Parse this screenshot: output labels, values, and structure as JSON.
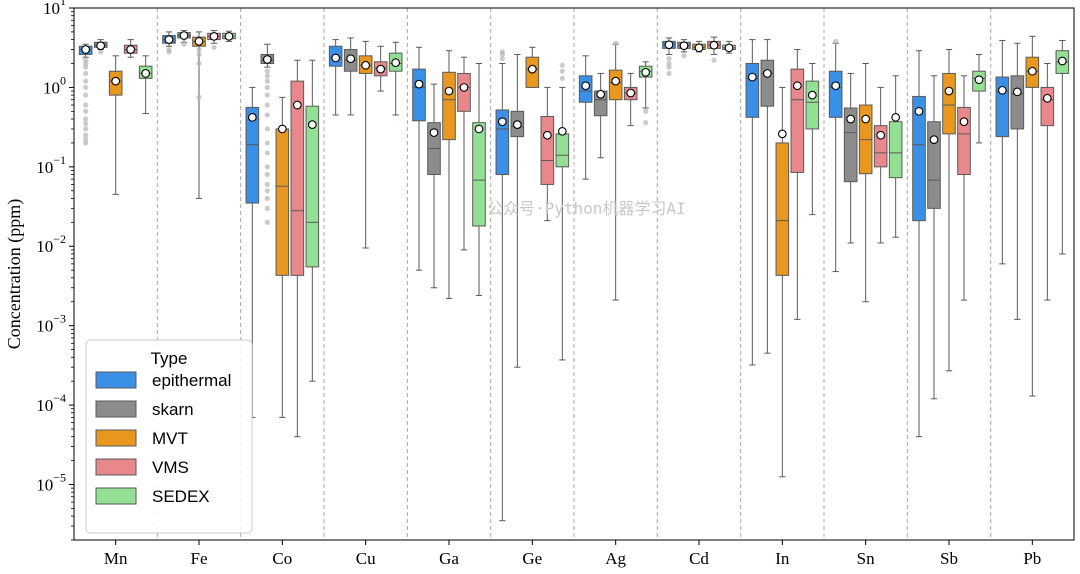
{
  "chart_data": {
    "type": "box",
    "ylabel": "Concentration (ppm)",
    "xlabel": "",
    "yscale": "log",
    "ylim": [
      2e-06,
      10
    ],
    "y_ticks": [
      {
        "value": 1e-05,
        "base": "10",
        "exp": "−5"
      },
      {
        "value": 0.0001,
        "base": "10",
        "exp": "−4"
      },
      {
        "value": 0.001,
        "base": "10",
        "exp": "−3"
      },
      {
        "value": 0.01,
        "base": "10",
        "exp": "−2"
      },
      {
        "value": 0.1,
        "base": "10",
        "exp": "−1"
      },
      {
        "value": 1,
        "base": "10",
        "exp": "0"
      },
      {
        "value": 10,
        "base": "10",
        "exp": "1"
      }
    ],
    "categories": [
      "Mn",
      "Fe",
      "Co",
      "Cu",
      "Ga",
      "Ge",
      "Ag",
      "Cd",
      "In",
      "Sn",
      "Sb",
      "Pb"
    ],
    "legend": {
      "title": "Type",
      "position": "lower-left"
    },
    "grid": false,
    "category_separators": "dashed-vertical",
    "series": [
      {
        "name": "epithermal",
        "color": "#3a8fe6",
        "boxes": [
          {
            "whislo": 2.4,
            "q1": 2.6,
            "med": 3.0,
            "q3": 3.3,
            "whishi": 3.5,
            "mean": 3.0,
            "fliers": [
              2.2,
              2.0,
              1.8,
              1.5,
              1.2,
              1.0,
              0.8,
              0.6,
              0.5,
              0.4,
              0.35,
              0.3,
              0.25,
              0.22,
              0.2
            ]
          },
          {
            "whislo": 3.3,
            "q1": 3.6,
            "med": 4.0,
            "q3": 4.5,
            "whishi": 5.0,
            "mean": 4.0,
            "fliers": [
              3.0,
              2.8
            ]
          },
          {
            "whislo": 7e-05,
            "q1": 0.035,
            "med": 0.19,
            "q3": 0.56,
            "whishi": 1.0,
            "mean": 0.42,
            "fliers": []
          },
          {
            "whislo": 0.45,
            "q1": 1.85,
            "med": 2.4,
            "q3": 3.3,
            "whishi": 4.0,
            "mean": 2.35,
            "fliers": []
          },
          {
            "whislo": 0.005,
            "q1": 0.38,
            "med": 1.0,
            "q3": 1.7,
            "whishi": 3.2,
            "mean": 1.1,
            "fliers": []
          },
          {
            "whislo": 3.5e-06,
            "q1": 0.08,
            "med": 0.3,
            "q3": 0.52,
            "whishi": 2.0,
            "mean": 0.37,
            "fliers": [
              2.3,
              2.6,
              2.8
            ]
          },
          {
            "whislo": 0.07,
            "q1": 0.65,
            "med": 0.9,
            "q3": 1.4,
            "whishi": 2.5,
            "mean": 1.05,
            "fliers": []
          },
          {
            "whislo": 2.6,
            "q1": 3.1,
            "med": 3.5,
            "q3": 3.8,
            "whishi": 4.2,
            "mean": 3.45,
            "fliers": [
              2.3,
              2.0,
              1.8,
              1.5
            ]
          },
          {
            "whislo": 0.00032,
            "q1": 0.42,
            "med": 1.3,
            "q3": 2.0,
            "whishi": 4.0,
            "mean": 1.35,
            "fliers": []
          },
          {
            "whislo": 0.0048,
            "q1": 0.42,
            "med": 1.0,
            "q3": 1.6,
            "whishi": 3.6,
            "mean": 1.05,
            "fliers": [
              3.8
            ]
          },
          {
            "whislo": 4e-05,
            "q1": 0.021,
            "med": 0.19,
            "q3": 0.77,
            "whishi": 2.9,
            "mean": 0.5,
            "fliers": []
          },
          {
            "whislo": 0.006,
            "q1": 0.24,
            "med": 0.9,
            "q3": 1.35,
            "whishi": 3.9,
            "mean": 0.92,
            "fliers": []
          }
        ]
      },
      {
        "name": "skarn",
        "color": "#8c8c8c",
        "boxes": [
          {
            "whislo": 3.0,
            "q1": 3.2,
            "med": 3.4,
            "q3": 3.7,
            "whishi": 4.0,
            "mean": 3.35,
            "fliers": [
              2.8
            ]
          },
          {
            "whislo": 3.7,
            "q1": 4.2,
            "med": 4.5,
            "q3": 4.9,
            "whishi": 5.2,
            "mean": 4.5,
            "fliers": [
              3.5
            ]
          },
          {
            "whislo": 1.8,
            "q1": 2.0,
            "med": 2.2,
            "q3": 2.6,
            "whishi": 3.5,
            "mean": 2.25,
            "fliers": [
              1.6,
              1.4,
              1.2,
              1.0,
              0.8,
              0.6,
              0.45,
              0.3,
              0.2,
              0.15,
              0.1,
              0.08,
              0.06,
              0.05,
              0.04,
              0.03,
              0.02
            ]
          },
          {
            "whislo": 0.45,
            "q1": 1.6,
            "med": 2.2,
            "q3": 3.0,
            "whishi": 4.2,
            "mean": 2.3,
            "fliers": []
          },
          {
            "whislo": 0.003,
            "q1": 0.08,
            "med": 0.17,
            "q3": 0.36,
            "whishi": 1.1,
            "mean": 0.27,
            "fliers": []
          },
          {
            "whislo": 0.0003,
            "q1": 0.24,
            "med": 0.32,
            "q3": 0.5,
            "whishi": 2.6,
            "mean": 0.34,
            "fliers": []
          },
          {
            "whislo": 0.13,
            "q1": 0.44,
            "med": 0.7,
            "q3": 0.9,
            "whishi": 1.5,
            "mean": 0.82,
            "fliers": []
          },
          {
            "whislo": 2.8,
            "q1": 3.1,
            "med": 3.4,
            "q3": 3.7,
            "whishi": 4.0,
            "mean": 3.35,
            "fliers": [
              2.5
            ]
          },
          {
            "whislo": 0.00045,
            "q1": 0.58,
            "med": 1.5,
            "q3": 2.2,
            "whishi": 4.0,
            "mean": 1.5,
            "fliers": []
          },
          {
            "whislo": 0.011,
            "q1": 0.065,
            "med": 0.27,
            "q3": 0.55,
            "whishi": 1.5,
            "mean": 0.4,
            "fliers": []
          },
          {
            "whislo": 0.00012,
            "q1": 0.03,
            "med": 0.068,
            "q3": 0.37,
            "whishi": 1.4,
            "mean": 0.22,
            "fliers": []
          },
          {
            "whislo": 0.0012,
            "q1": 0.3,
            "med": 0.83,
            "q3": 1.4,
            "whishi": 3.6,
            "mean": 0.88,
            "fliers": []
          }
        ]
      },
      {
        "name": "MVT",
        "color": "#e8981e",
        "boxes": [
          {
            "whislo": 0.045,
            "q1": 0.8,
            "med": 1.2,
            "q3": 1.6,
            "whishi": 2.5,
            "mean": 1.2,
            "fliers": []
          },
          {
            "whislo": 0.04,
            "q1": 3.3,
            "med": 3.8,
            "q3": 4.3,
            "whishi": 5.0,
            "mean": 3.8,
            "fliers": [
              3.0,
              2.6,
              2.0,
              0.75
            ]
          },
          {
            "whislo": 7e-05,
            "q1": 0.0043,
            "med": 0.057,
            "q3": 0.3,
            "whishi": 0.75,
            "mean": 0.3,
            "fliers": []
          },
          {
            "whislo": 0.0095,
            "q1": 1.5,
            "med": 1.9,
            "q3": 2.5,
            "whishi": 3.8,
            "mean": 1.9,
            "fliers": []
          },
          {
            "whislo": 0.0022,
            "q1": 0.22,
            "med": 0.7,
            "q3": 1.55,
            "whishi": 2.9,
            "mean": 0.9,
            "fliers": []
          },
          {
            "whislo": 1.0,
            "q1": 1.0,
            "med": 1.7,
            "q3": 2.4,
            "whishi": 3.2,
            "mean": 1.7,
            "fliers": []
          },
          {
            "whislo": 0.0021,
            "q1": 0.7,
            "med": 1.15,
            "q3": 1.65,
            "whishi": 3.5,
            "mean": 1.2,
            "fliers": [
              3.6
            ]
          },
          {
            "whislo": 2.8,
            "q1": 3.0,
            "med": 3.2,
            "q3": 3.5,
            "whishi": 3.8,
            "mean": 3.15,
            "fliers": []
          },
          {
            "whislo": 1.25e-05,
            "q1": 0.0043,
            "med": 0.021,
            "q3": 0.2,
            "whishi": 1.0,
            "mean": 0.26,
            "fliers": []
          },
          {
            "whislo": 0.002,
            "q1": 0.082,
            "med": 0.22,
            "q3": 0.6,
            "whishi": 2.0,
            "mean": 0.4,
            "fliers": []
          },
          {
            "whislo": 0.00027,
            "q1": 0.26,
            "med": 0.6,
            "q3": 1.5,
            "whishi": 3.0,
            "mean": 0.9,
            "fliers": []
          },
          {
            "whislo": 0.00013,
            "q1": 1.0,
            "med": 1.6,
            "q3": 2.4,
            "whishi": 4.4,
            "mean": 1.6,
            "fliers": []
          }
        ]
      },
      {
        "name": "VMS",
        "color": "#e8878c",
        "boxes": [
          {
            "whislo": 2.4,
            "q1": 2.7,
            "med": 3.0,
            "q3": 3.4,
            "whishi": 4.0,
            "mean": 3.0,
            "fliers": []
          },
          {
            "whislo": 3.6,
            "q1": 4.0,
            "med": 4.4,
            "q3": 4.8,
            "whishi": 5.2,
            "mean": 4.4,
            "fliers": [
              3.2
            ]
          },
          {
            "whislo": 4e-05,
            "q1": 0.0043,
            "med": 0.028,
            "q3": 1.2,
            "whishi": 2.2,
            "mean": 0.6,
            "fliers": []
          },
          {
            "whislo": 0.9,
            "q1": 1.4,
            "med": 1.75,
            "q3": 2.1,
            "whishi": 3.3,
            "mean": 1.7,
            "fliers": []
          },
          {
            "whislo": 0.009,
            "q1": 0.5,
            "med": 1.0,
            "q3": 1.5,
            "whishi": 2.4,
            "mean": 1.0,
            "fliers": []
          },
          {
            "whislo": 0.021,
            "q1": 0.06,
            "med": 0.12,
            "q3": 0.43,
            "whishi": 1.0,
            "mean": 0.25,
            "fliers": []
          },
          {
            "whislo": 0.33,
            "q1": 0.7,
            "med": 0.85,
            "q3": 1.0,
            "whishi": 1.5,
            "mean": 0.85,
            "fliers": []
          },
          {
            "whislo": 2.6,
            "q1": 3.1,
            "med": 3.4,
            "q3": 3.8,
            "whishi": 4.3,
            "mean": 3.4,
            "fliers": [
              2.2
            ]
          },
          {
            "whislo": 0.0012,
            "q1": 0.085,
            "med": 0.7,
            "q3": 1.7,
            "whishi": 3.0,
            "mean": 1.05,
            "fliers": []
          },
          {
            "whislo": 0.011,
            "q1": 0.1,
            "med": 0.15,
            "q3": 0.33,
            "whishi": 1.0,
            "mean": 0.25,
            "fliers": []
          },
          {
            "whislo": 0.0021,
            "q1": 0.08,
            "med": 0.26,
            "q3": 0.56,
            "whishi": 1.4,
            "mean": 0.37,
            "fliers": []
          },
          {
            "whislo": 0.0021,
            "q1": 0.33,
            "med": 0.7,
            "q3": 1.0,
            "whishi": 2.0,
            "mean": 0.73,
            "fliers": []
          }
        ]
      },
      {
        "name": "SEDEX",
        "color": "#93df93",
        "boxes": [
          {
            "whislo": 0.47,
            "q1": 1.3,
            "med": 1.5,
            "q3": 1.85,
            "whishi": 2.5,
            "mean": 1.5,
            "fliers": []
          },
          {
            "whislo": 3.8,
            "q1": 4.1,
            "med": 4.4,
            "q3": 4.8,
            "whishi": 5.1,
            "mean": 4.4,
            "fliers": []
          },
          {
            "whislo": 0.0002,
            "q1": 0.0055,
            "med": 0.02,
            "q3": 0.58,
            "whishi": 2.2,
            "mean": 0.34,
            "fliers": []
          },
          {
            "whislo": 0.45,
            "q1": 1.6,
            "med": 2.0,
            "q3": 2.7,
            "whishi": 3.7,
            "mean": 2.05,
            "fliers": []
          },
          {
            "whislo": 0.0024,
            "q1": 0.018,
            "med": 0.068,
            "q3": 0.36,
            "whishi": 2.0,
            "mean": 0.3,
            "fliers": []
          },
          {
            "whislo": 0.00037,
            "q1": 0.1,
            "med": 0.14,
            "q3": 0.26,
            "whishi": 1.0,
            "mean": 0.28,
            "fliers": [
              1.3,
              1.6,
              1.9
            ]
          },
          {
            "whislo": 0.55,
            "q1": 1.35,
            "med": 1.6,
            "q3": 1.85,
            "whishi": 2.1,
            "mean": 1.55,
            "fliers": [
              0.36,
              0.5
            ]
          },
          {
            "whislo": 2.7,
            "q1": 3.0,
            "med": 3.15,
            "q3": 3.4,
            "whishi": 3.8,
            "mean": 3.15,
            "fliers": []
          },
          {
            "whislo": 0.025,
            "q1": 0.3,
            "med": 0.65,
            "q3": 1.2,
            "whishi": 2.0,
            "mean": 0.8,
            "fliers": []
          },
          {
            "whislo": 0.013,
            "q1": 0.073,
            "med": 0.15,
            "q3": 0.37,
            "whishi": 1.4,
            "mean": 0.42,
            "fliers": []
          },
          {
            "whislo": 0.2,
            "q1": 0.9,
            "med": 1.3,
            "q3": 1.6,
            "whishi": 2.6,
            "mean": 1.25,
            "fliers": []
          },
          {
            "whislo": 0.008,
            "q1": 1.5,
            "med": 2.1,
            "q3": 2.9,
            "whishi": 3.9,
            "mean": 2.15,
            "fliers": []
          }
        ]
      }
    ]
  },
  "watermark": "公众号·Python机器学习AI"
}
